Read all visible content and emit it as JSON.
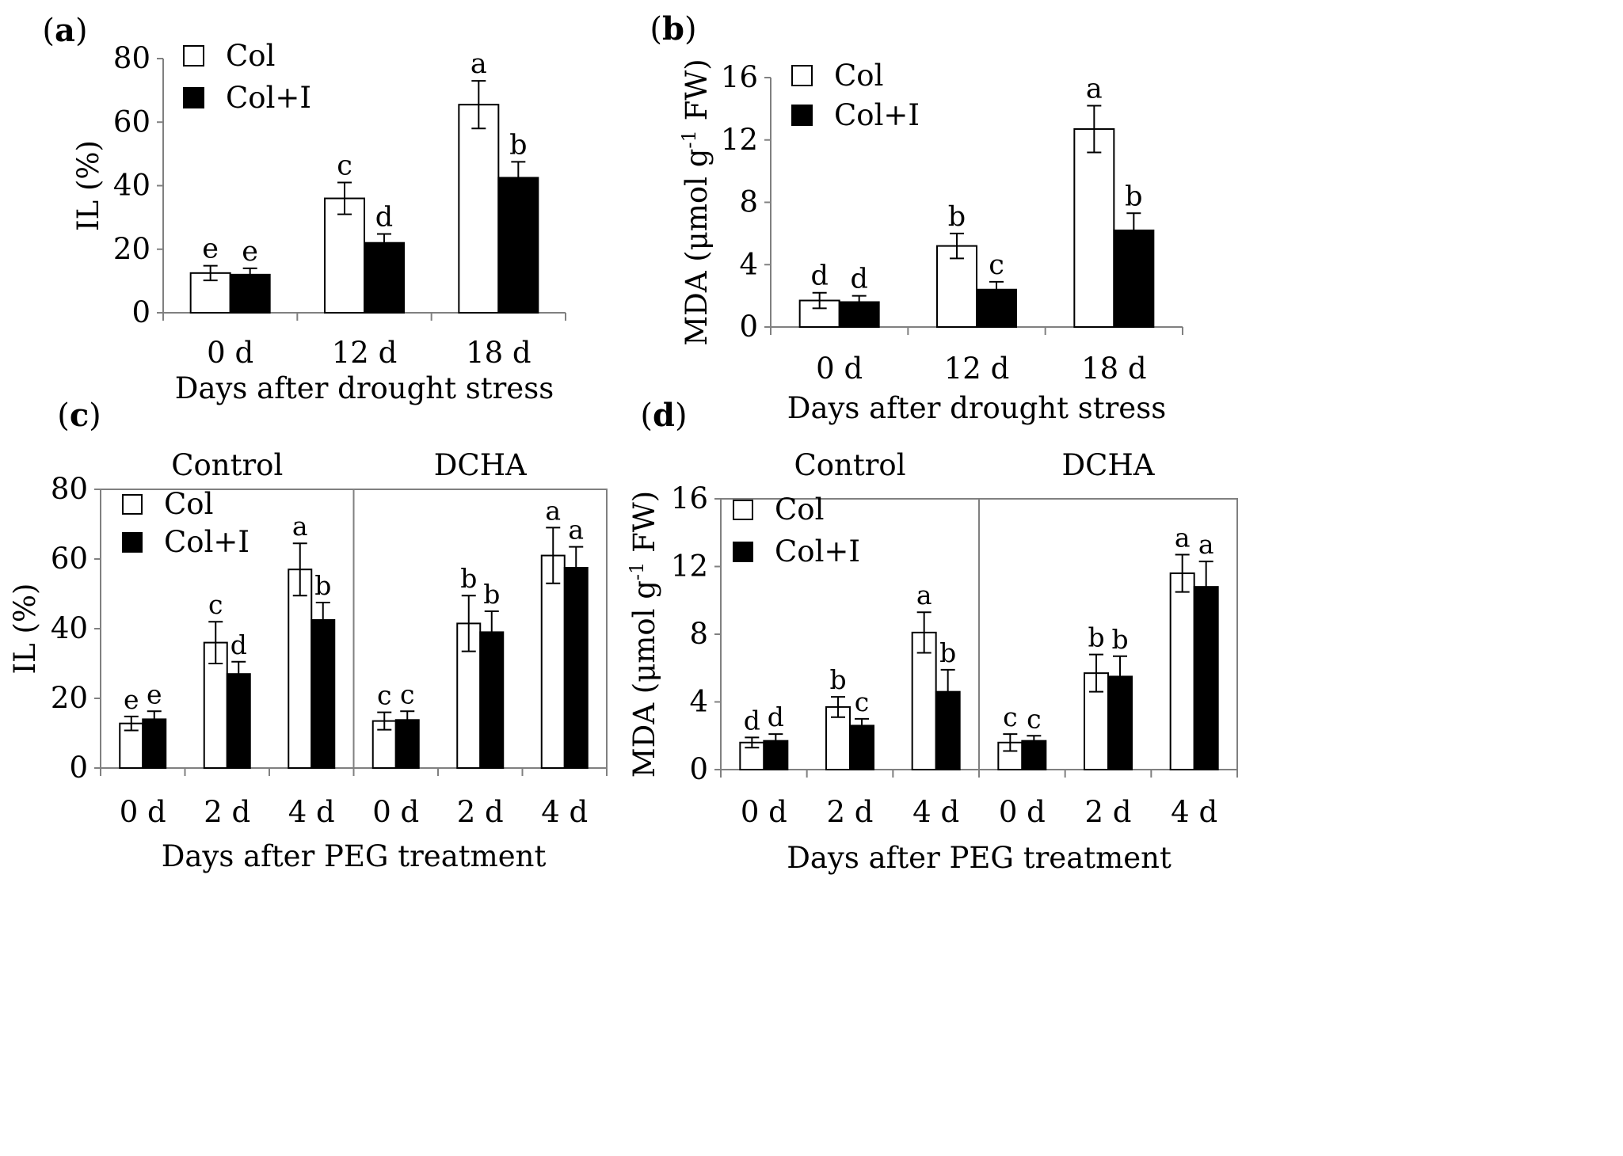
{
  "legend": {
    "col": "Col",
    "col_i": "Col+I"
  },
  "chart_data": [
    {
      "id": "a",
      "panel_label": "a",
      "type": "bar",
      "ylabel": "IL (%)",
      "ylabel_sup": "",
      "ylabel_tail": "",
      "xlabel": "Days after drought stress",
      "ylim": [
        0,
        80
      ],
      "yticks": [
        0,
        20,
        40,
        60,
        80
      ],
      "groups": [],
      "categories": [
        "0 d",
        "12 d",
        "18 d"
      ],
      "series": [
        {
          "name": "Col",
          "values": [
            12.5,
            36,
            65.5
          ],
          "errors": [
            2.3,
            5,
            7.5
          ],
          "letters": [
            "e",
            "c",
            "a"
          ]
        },
        {
          "name": "Col+I",
          "values": [
            12,
            22,
            42.5
          ],
          "errors": [
            2,
            2.8,
            5
          ],
          "letters": [
            "e",
            "d",
            "b"
          ]
        }
      ]
    },
    {
      "id": "b",
      "panel_label": "b",
      "type": "bar",
      "ylabel": "MDA (μmol g",
      "ylabel_sup": "-1",
      "ylabel_tail": " FW)",
      "xlabel": "Days after drought stress",
      "ylim": [
        0,
        16
      ],
      "yticks": [
        0,
        4,
        8,
        12,
        16
      ],
      "groups": [],
      "categories": [
        "0 d",
        "12 d",
        "18 d"
      ],
      "series": [
        {
          "name": "Col",
          "values": [
            1.7,
            5.2,
            12.7
          ],
          "errors": [
            0.5,
            0.8,
            1.5
          ],
          "letters": [
            "d",
            "b",
            "a"
          ]
        },
        {
          "name": "Col+I",
          "values": [
            1.6,
            2.4,
            6.2
          ],
          "errors": [
            0.4,
            0.5,
            1.1
          ],
          "letters": [
            "d",
            "c",
            "b"
          ]
        }
      ]
    },
    {
      "id": "c",
      "panel_label": "c",
      "type": "bar",
      "ylabel": "IL (%)",
      "ylabel_sup": "",
      "ylabel_tail": "",
      "xlabel": "Days after PEG treatment",
      "ylim": [
        0,
        80
      ],
      "yticks": [
        0,
        20,
        40,
        60,
        80
      ],
      "groups": [
        "Control",
        "DCHA"
      ],
      "categories": [
        "0 d",
        "2 d",
        "4 d",
        "0 d",
        "2 d",
        "4 d"
      ],
      "series": [
        {
          "name": "Col",
          "values": [
            12.8,
            36,
            57,
            13.5,
            41.5,
            61
          ],
          "errors": [
            2,
            6,
            7.5,
            2.5,
            8,
            8
          ],
          "letters": [
            "e",
            "c",
            "a",
            "c",
            "b",
            "a"
          ]
        },
        {
          "name": "Col+I",
          "values": [
            14,
            27,
            42.5,
            13.8,
            39,
            57.5
          ],
          "errors": [
            2.3,
            3.5,
            5,
            2.5,
            6,
            6
          ],
          "letters": [
            "e",
            "d",
            "b",
            "c",
            "b",
            "a"
          ]
        }
      ]
    },
    {
      "id": "d",
      "panel_label": "d",
      "type": "bar",
      "ylabel": "MDA (μmol g",
      "ylabel_sup": "-1",
      "ylabel_tail": " FW)",
      "xlabel": "Days after PEG treatment",
      "ylim": [
        0,
        16
      ],
      "yticks": [
        0,
        4,
        8,
        12,
        16
      ],
      "groups": [
        "Control",
        "DCHA"
      ],
      "categories": [
        "0 d",
        "2 d",
        "4 d",
        "0 d",
        "2 d",
        "4 d"
      ],
      "series": [
        {
          "name": "Col",
          "values": [
            1.6,
            3.7,
            8.1,
            1.6,
            5.7,
            11.6
          ],
          "errors": [
            0.3,
            0.6,
            1.2,
            0.5,
            1.1,
            1.1
          ],
          "letters": [
            "d",
            "b",
            "a",
            "c",
            "b",
            "a"
          ]
        },
        {
          "name": "Col+I",
          "values": [
            1.7,
            2.6,
            4.6,
            1.7,
            5.5,
            10.8
          ],
          "errors": [
            0.4,
            0.4,
            1.3,
            0.3,
            1.2,
            1.5
          ],
          "letters": [
            "d",
            "c",
            "b",
            "c",
            "b",
            "a"
          ]
        }
      ]
    }
  ]
}
